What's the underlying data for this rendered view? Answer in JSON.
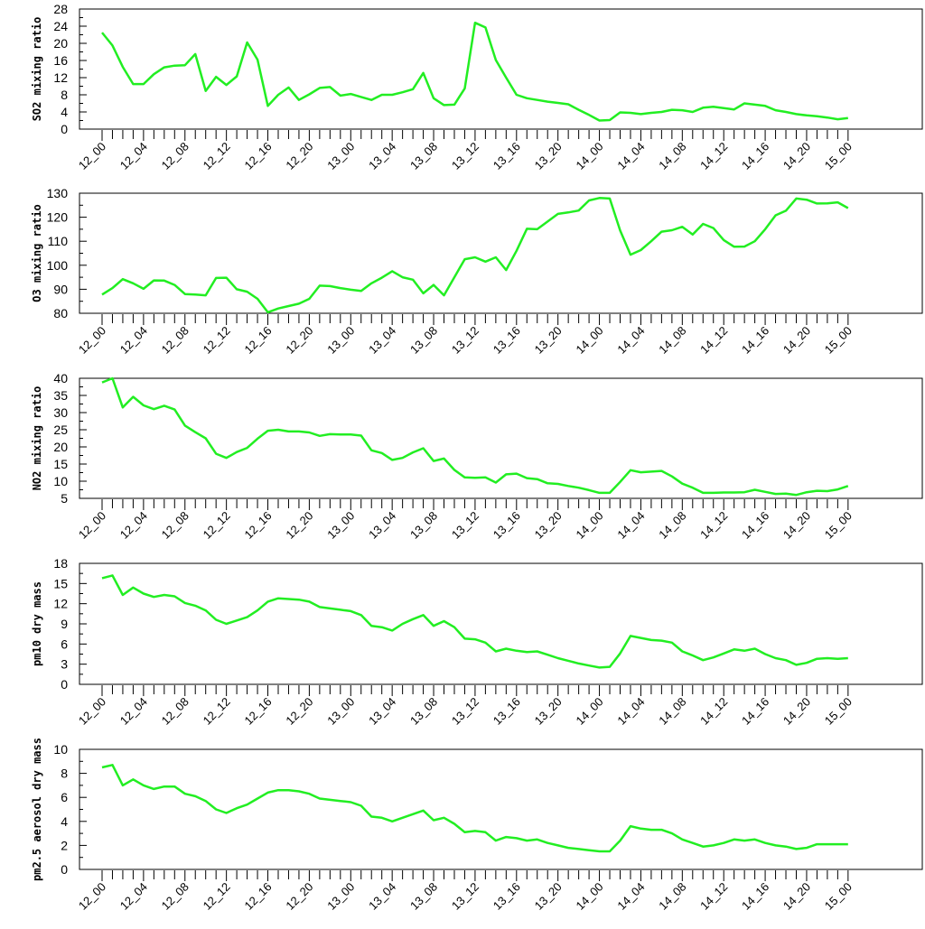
{
  "colors": {
    "line": "#22ee22",
    "axis": "#000000",
    "background": "#ffffff"
  },
  "x_tick_labels": [
    "12_00",
    "12_04",
    "12_08",
    "12_12",
    "12_16",
    "12_20",
    "13_00",
    "13_04",
    "13_08",
    "13_12",
    "13_16",
    "13_20",
    "14_00",
    "14_04",
    "14_08",
    "14_12",
    "14_16",
    "14_20",
    "15_00"
  ],
  "chart_data": [
    {
      "type": "line",
      "ylabel": "SO2 mixing ratio",
      "ylim": [
        0,
        28
      ],
      "yticks": [
        0,
        4,
        8,
        12,
        16,
        20,
        24,
        28
      ],
      "values": [
        22.5,
        19.5,
        14.5,
        10.5,
        10.5,
        12.8,
        14.4,
        14.8,
        14.9,
        17.5,
        8.9,
        12.2,
        10.3,
        12.3,
        20.2,
        16.2,
        5.4,
        8.0,
        9.7,
        6.8,
        8.1,
        9.6,
        9.8,
        7.8,
        8.2,
        7.5,
        6.8,
        8.0,
        8.0,
        8.6,
        9.3,
        13.1,
        7.2,
        5.6,
        5.7,
        9.5,
        24.8,
        23.7,
        16.1,
        12.0,
        8.0,
        7.2,
        6.8,
        6.4,
        6.1,
        5.8,
        4.5,
        3.3,
        2.0,
        2.1,
        3.9,
        3.8,
        3.5,
        3.8,
        4.0,
        4.5,
        4.4,
        4.0,
        5.0,
        5.2,
        4.9,
        4.6,
        6.0,
        5.7,
        5.4,
        4.4,
        4.0,
        3.5,
        3.2,
        3.0,
        2.7,
        2.3,
        2.6
      ]
    },
    {
      "type": "line",
      "ylabel": "O3 mixing ratio",
      "ylim": [
        80,
        130
      ],
      "yticks": [
        80,
        90,
        100,
        110,
        120,
        130
      ],
      "values": [
        87.8,
        90.5,
        94.2,
        92.5,
        90.2,
        93.7,
        93.6,
        91.8,
        88.0,
        87.8,
        87.5,
        94.7,
        94.8,
        90.0,
        89.0,
        86.0,
        80.4,
        82.0,
        83.0,
        84.0,
        86.0,
        91.5,
        91.3,
        90.5,
        89.8,
        89.3,
        92.5,
        94.8,
        97.5,
        95.0,
        94.0,
        88.3,
        91.8,
        87.5,
        95.0,
        102.5,
        103.3,
        101.5,
        103.3,
        98.0,
        106.0,
        115.2,
        115.0,
        118.2,
        121.4,
        122.0,
        122.8,
        127.0,
        128.0,
        127.8,
        114.5,
        104.4,
        106.3,
        110.0,
        114.0,
        114.6,
        116.0,
        112.8,
        117.2,
        115.5,
        110.5,
        107.7,
        107.8,
        110.0,
        115.0,
        120.8,
        122.7,
        127.8,
        127.3,
        125.7,
        125.8,
        126.2,
        123.8
      ]
    },
    {
      "type": "line",
      "ylabel": "NO2 mixing ratio",
      "ylim": [
        5,
        40
      ],
      "yticks": [
        5,
        10,
        15,
        20,
        25,
        30,
        35,
        40
      ],
      "values": [
        38.8,
        40.0,
        31.5,
        34.6,
        32.1,
        31.0,
        32.0,
        30.9,
        26.2,
        24.3,
        22.5,
        18.0,
        16.8,
        18.5,
        19.7,
        22.4,
        24.7,
        25.0,
        24.5,
        24.5,
        24.2,
        23.2,
        23.7,
        23.6,
        23.6,
        23.3,
        19.0,
        18.2,
        16.2,
        16.8,
        18.4,
        19.6,
        15.9,
        16.6,
        13.3,
        11.1,
        11.0,
        11.1,
        9.6,
        12.0,
        12.2,
        10.9,
        10.6,
        9.4,
        9.2,
        8.6,
        8.1,
        7.4,
        6.6,
        6.6,
        9.8,
        13.2,
        12.6,
        12.8,
        13.0,
        11.4,
        9.3,
        8.1,
        6.6,
        6.6,
        6.7,
        6.7,
        6.8,
        7.5,
        6.9,
        6.3,
        6.4,
        6.0,
        6.8,
        7.2,
        7.1,
        7.6,
        8.6
      ]
    },
    {
      "type": "line",
      "ylabel": "pm10 dry mass",
      "ylim": [
        0,
        18
      ],
      "yticks": [
        0,
        3,
        6,
        9,
        12,
        15,
        18
      ],
      "values": [
        15.8,
        16.2,
        13.3,
        14.4,
        13.5,
        13.0,
        13.3,
        13.1,
        12.1,
        11.7,
        11.0,
        9.6,
        9.0,
        9.5,
        10.0,
        11.0,
        12.3,
        12.8,
        12.7,
        12.6,
        12.3,
        11.5,
        11.3,
        11.1,
        10.9,
        10.3,
        8.7,
        8.5,
        8.0,
        9.0,
        9.7,
        10.3,
        8.7,
        9.4,
        8.5,
        6.8,
        6.7,
        6.2,
        4.9,
        5.3,
        5.0,
        4.8,
        4.9,
        4.4,
        3.9,
        3.5,
        3.1,
        2.8,
        2.5,
        2.6,
        4.6,
        7.2,
        6.9,
        6.6,
        6.5,
        6.2,
        4.9,
        4.3,
        3.6,
        4.0,
        4.6,
        5.2,
        5.0,
        5.3,
        4.5,
        3.9,
        3.6,
        2.9,
        3.2,
        3.8,
        3.9,
        3.8,
        3.9
      ]
    },
    {
      "type": "line",
      "ylabel": "pm2.5 aerosol dry mass",
      "ylim": [
        0,
        10
      ],
      "yticks": [
        0,
        2,
        4,
        6,
        8,
        10
      ],
      "values": [
        8.5,
        8.7,
        7.0,
        7.5,
        7.0,
        6.7,
        6.9,
        6.9,
        6.3,
        6.1,
        5.7,
        5.0,
        4.7,
        5.1,
        5.4,
        5.9,
        6.4,
        6.6,
        6.6,
        6.5,
        6.3,
        5.9,
        5.8,
        5.7,
        5.6,
        5.3,
        4.4,
        4.3,
        4.0,
        4.3,
        4.6,
        4.9,
        4.1,
        4.3,
        3.8,
        3.1,
        3.2,
        3.1,
        2.4,
        2.7,
        2.6,
        2.4,
        2.5,
        2.2,
        2.0,
        1.8,
        1.7,
        1.6,
        1.5,
        1.5,
        2.4,
        3.6,
        3.4,
        3.3,
        3.3,
        3.0,
        2.5,
        2.2,
        1.9,
        2.0,
        2.2,
        2.5,
        2.4,
        2.5,
        2.2,
        2.0,
        1.9,
        1.7,
        1.8,
        2.1,
        2.1,
        2.1,
        2.1
      ]
    }
  ]
}
